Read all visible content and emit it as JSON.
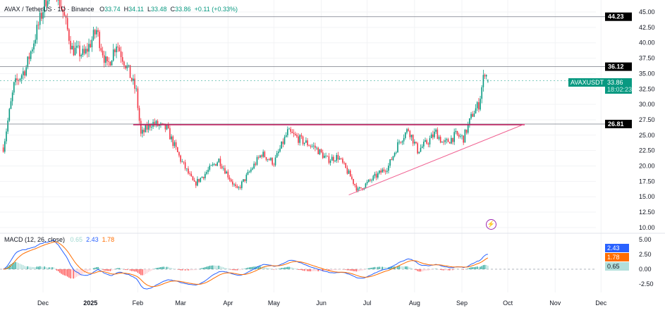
{
  "header": {
    "symbol": "AVAX / TetherUS · 1D · Binance",
    "open_label": "O",
    "open": "33.74",
    "high_label": "H",
    "high": "34.11",
    "low_label": "L",
    "low": "33.48",
    "close_label": "C",
    "close": "33.86",
    "change": "+0.11 (+0.33%)"
  },
  "macd_legend": {
    "label": "MACD (12, 26, close)",
    "histogram": "0.65",
    "macd": "2.43",
    "signal": "1.78"
  },
  "price_tag": {
    "symbol": "AVAXUSDT",
    "price": "33.86",
    "countdown": "18:02:23"
  },
  "levels": [
    {
      "value": 44.23,
      "label": "44.23"
    },
    {
      "value": 36.12,
      "label": "36.12"
    },
    {
      "value": 26.81,
      "label": "26.81"
    }
  ],
  "colors": {
    "up": "#089981",
    "down": "#f23645",
    "macd": "#2962ff",
    "signal": "#ff6d00",
    "trendline": "#f06292",
    "resistance": "#c2185b",
    "alert": "#9c27b0"
  },
  "icons": {
    "alert": "lightning-icon"
  },
  "chart_data": {
    "type": "candlestick",
    "interval": "1D",
    "price_axis": {
      "ylim": [
        10,
        45
      ],
      "ticks": [
        "45.00",
        "42.50",
        "40.00",
        "37.50",
        "35.00",
        "32.50",
        "30.00",
        "27.50",
        "25.00",
        "22.50",
        "20.00",
        "17.50",
        "15.00",
        "12.50",
        "10.00"
      ]
    },
    "macd_axis": {
      "ylim": [
        -3.5,
        6
      ],
      "ticks": [
        "5.00",
        "2.50",
        "0.00",
        "-2.50"
      ]
    },
    "x_ticks": [
      {
        "date": "2024-12-01",
        "label": "Dec"
      },
      {
        "date": "2025-01-01",
        "label": "2025"
      },
      {
        "date": "2025-02-01",
        "label": "Feb"
      },
      {
        "date": "2025-03-01",
        "label": "Mar"
      },
      {
        "date": "2025-04-01",
        "label": "Apr"
      },
      {
        "date": "2025-05-01",
        "label": "May"
      },
      {
        "date": "2025-06-01",
        "label": "Jun"
      },
      {
        "date": "2025-07-01",
        "label": "Jul"
      },
      {
        "date": "2025-08-01",
        "label": "Aug"
      },
      {
        "date": "2025-09-01",
        "label": "Sep"
      },
      {
        "date": "2025-10-01",
        "label": "Oct"
      },
      {
        "date": "2025-11-01",
        "label": "Nov"
      },
      {
        "date": "2025-12-01",
        "label": "Dec"
      }
    ],
    "approx_closes": [
      [
        "2024-11-05",
        23
      ],
      [
        "2024-11-12",
        33
      ],
      [
        "2024-11-20",
        36
      ],
      [
        "2024-11-27",
        42
      ],
      [
        "2024-12-04",
        48
      ],
      [
        "2024-12-08",
        50
      ],
      [
        "2024-12-14",
        45
      ],
      [
        "2024-12-20",
        39
      ],
      [
        "2024-12-28",
        38
      ],
      [
        "2025-01-05",
        42
      ],
      [
        "2025-01-12",
        36
      ],
      [
        "2025-01-18",
        40
      ],
      [
        "2025-01-25",
        36
      ],
      [
        "2025-01-31",
        32
      ],
      [
        "2025-02-03",
        25
      ],
      [
        "2025-02-10",
        27
      ],
      [
        "2025-02-20",
        26
      ],
      [
        "2025-03-01",
        21
      ],
      [
        "2025-03-10",
        17
      ],
      [
        "2025-03-20",
        19.5
      ],
      [
        "2025-03-26",
        21
      ],
      [
        "2025-04-07",
        16
      ],
      [
        "2025-04-15",
        19
      ],
      [
        "2025-04-23",
        22
      ],
      [
        "2025-05-01",
        20.5
      ],
      [
        "2025-05-10",
        25.5
      ],
      [
        "2025-05-20",
        24
      ],
      [
        "2025-05-28",
        23
      ],
      [
        "2025-06-05",
        21
      ],
      [
        "2025-06-12",
        21.5
      ],
      [
        "2025-06-20",
        18.3
      ],
      [
        "2025-06-25",
        16
      ],
      [
        "2025-07-05",
        18
      ],
      [
        "2025-07-15",
        20
      ],
      [
        "2025-07-22",
        24
      ],
      [
        "2025-07-28",
        26
      ],
      [
        "2025-08-03",
        22.5
      ],
      [
        "2025-08-10",
        24
      ],
      [
        "2025-08-15",
        25.5
      ],
      [
        "2025-08-20",
        23.5
      ],
      [
        "2025-08-28",
        25
      ],
      [
        "2025-09-02",
        24.5
      ],
      [
        "2025-09-08",
        28.5
      ],
      [
        "2025-09-12",
        30
      ],
      [
        "2025-09-16",
        35.5
      ],
      [
        "2025-09-18",
        33.86
      ]
    ],
    "last_candle": {
      "date": "2025-09-18",
      "open": 33.74,
      "high": 34.11,
      "low": 33.48,
      "close": 33.86
    },
    "drawings": {
      "resistance": {
        "from": [
          "2025-01-29",
          26.81
        ],
        "to": [
          "2025-10-12",
          26.81
        ]
      },
      "trendline": {
        "from": [
          "2025-06-19",
          15.3
        ],
        "to": [
          "2025-10-12",
          26.81
        ]
      }
    }
  }
}
